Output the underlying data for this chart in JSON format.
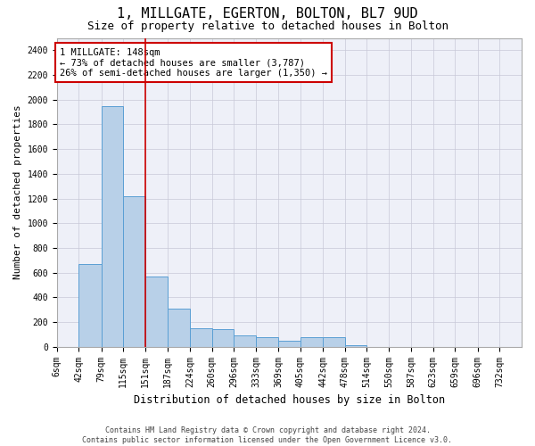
{
  "title1": "1, MILLGATE, EGERTON, BOLTON, BL7 9UD",
  "title2": "Size of property relative to detached houses in Bolton",
  "xlabel": "Distribution of detached houses by size in Bolton",
  "ylabel": "Number of detached properties",
  "bin_edges": [
    6,
    42,
    79,
    115,
    151,
    187,
    224,
    260,
    296,
    333,
    369,
    405,
    442,
    478,
    514,
    550,
    587,
    623,
    659,
    696,
    732
  ],
  "bar_heights": [
    0,
    670,
    1950,
    1220,
    570,
    310,
    150,
    145,
    90,
    75,
    50,
    75,
    75,
    10,
    0,
    0,
    0,
    0,
    0,
    0
  ],
  "bar_color": "#b8d0e8",
  "bar_edge_color": "#5a9fd4",
  "red_line_x": 151,
  "ylim": [
    0,
    2500
  ],
  "yticks": [
    0,
    200,
    400,
    600,
    800,
    1000,
    1200,
    1400,
    1600,
    1800,
    2000,
    2200,
    2400
  ],
  "annotation_text": "1 MILLGATE: 148sqm\n← 73% of detached houses are smaller (3,787)\n26% of semi-detached houses are larger (1,350) →",
  "annotation_box_color": "#ffffff",
  "annotation_box_edge_color": "#cc0000",
  "footer_text": "Contains HM Land Registry data © Crown copyright and database right 2024.\nContains public sector information licensed under the Open Government Licence v3.0.",
  "title1_fontsize": 11,
  "title2_fontsize": 9,
  "xlabel_fontsize": 8.5,
  "ylabel_fontsize": 8,
  "tick_fontsize": 7,
  "annotation_fontsize": 7.5,
  "footer_fontsize": 6
}
